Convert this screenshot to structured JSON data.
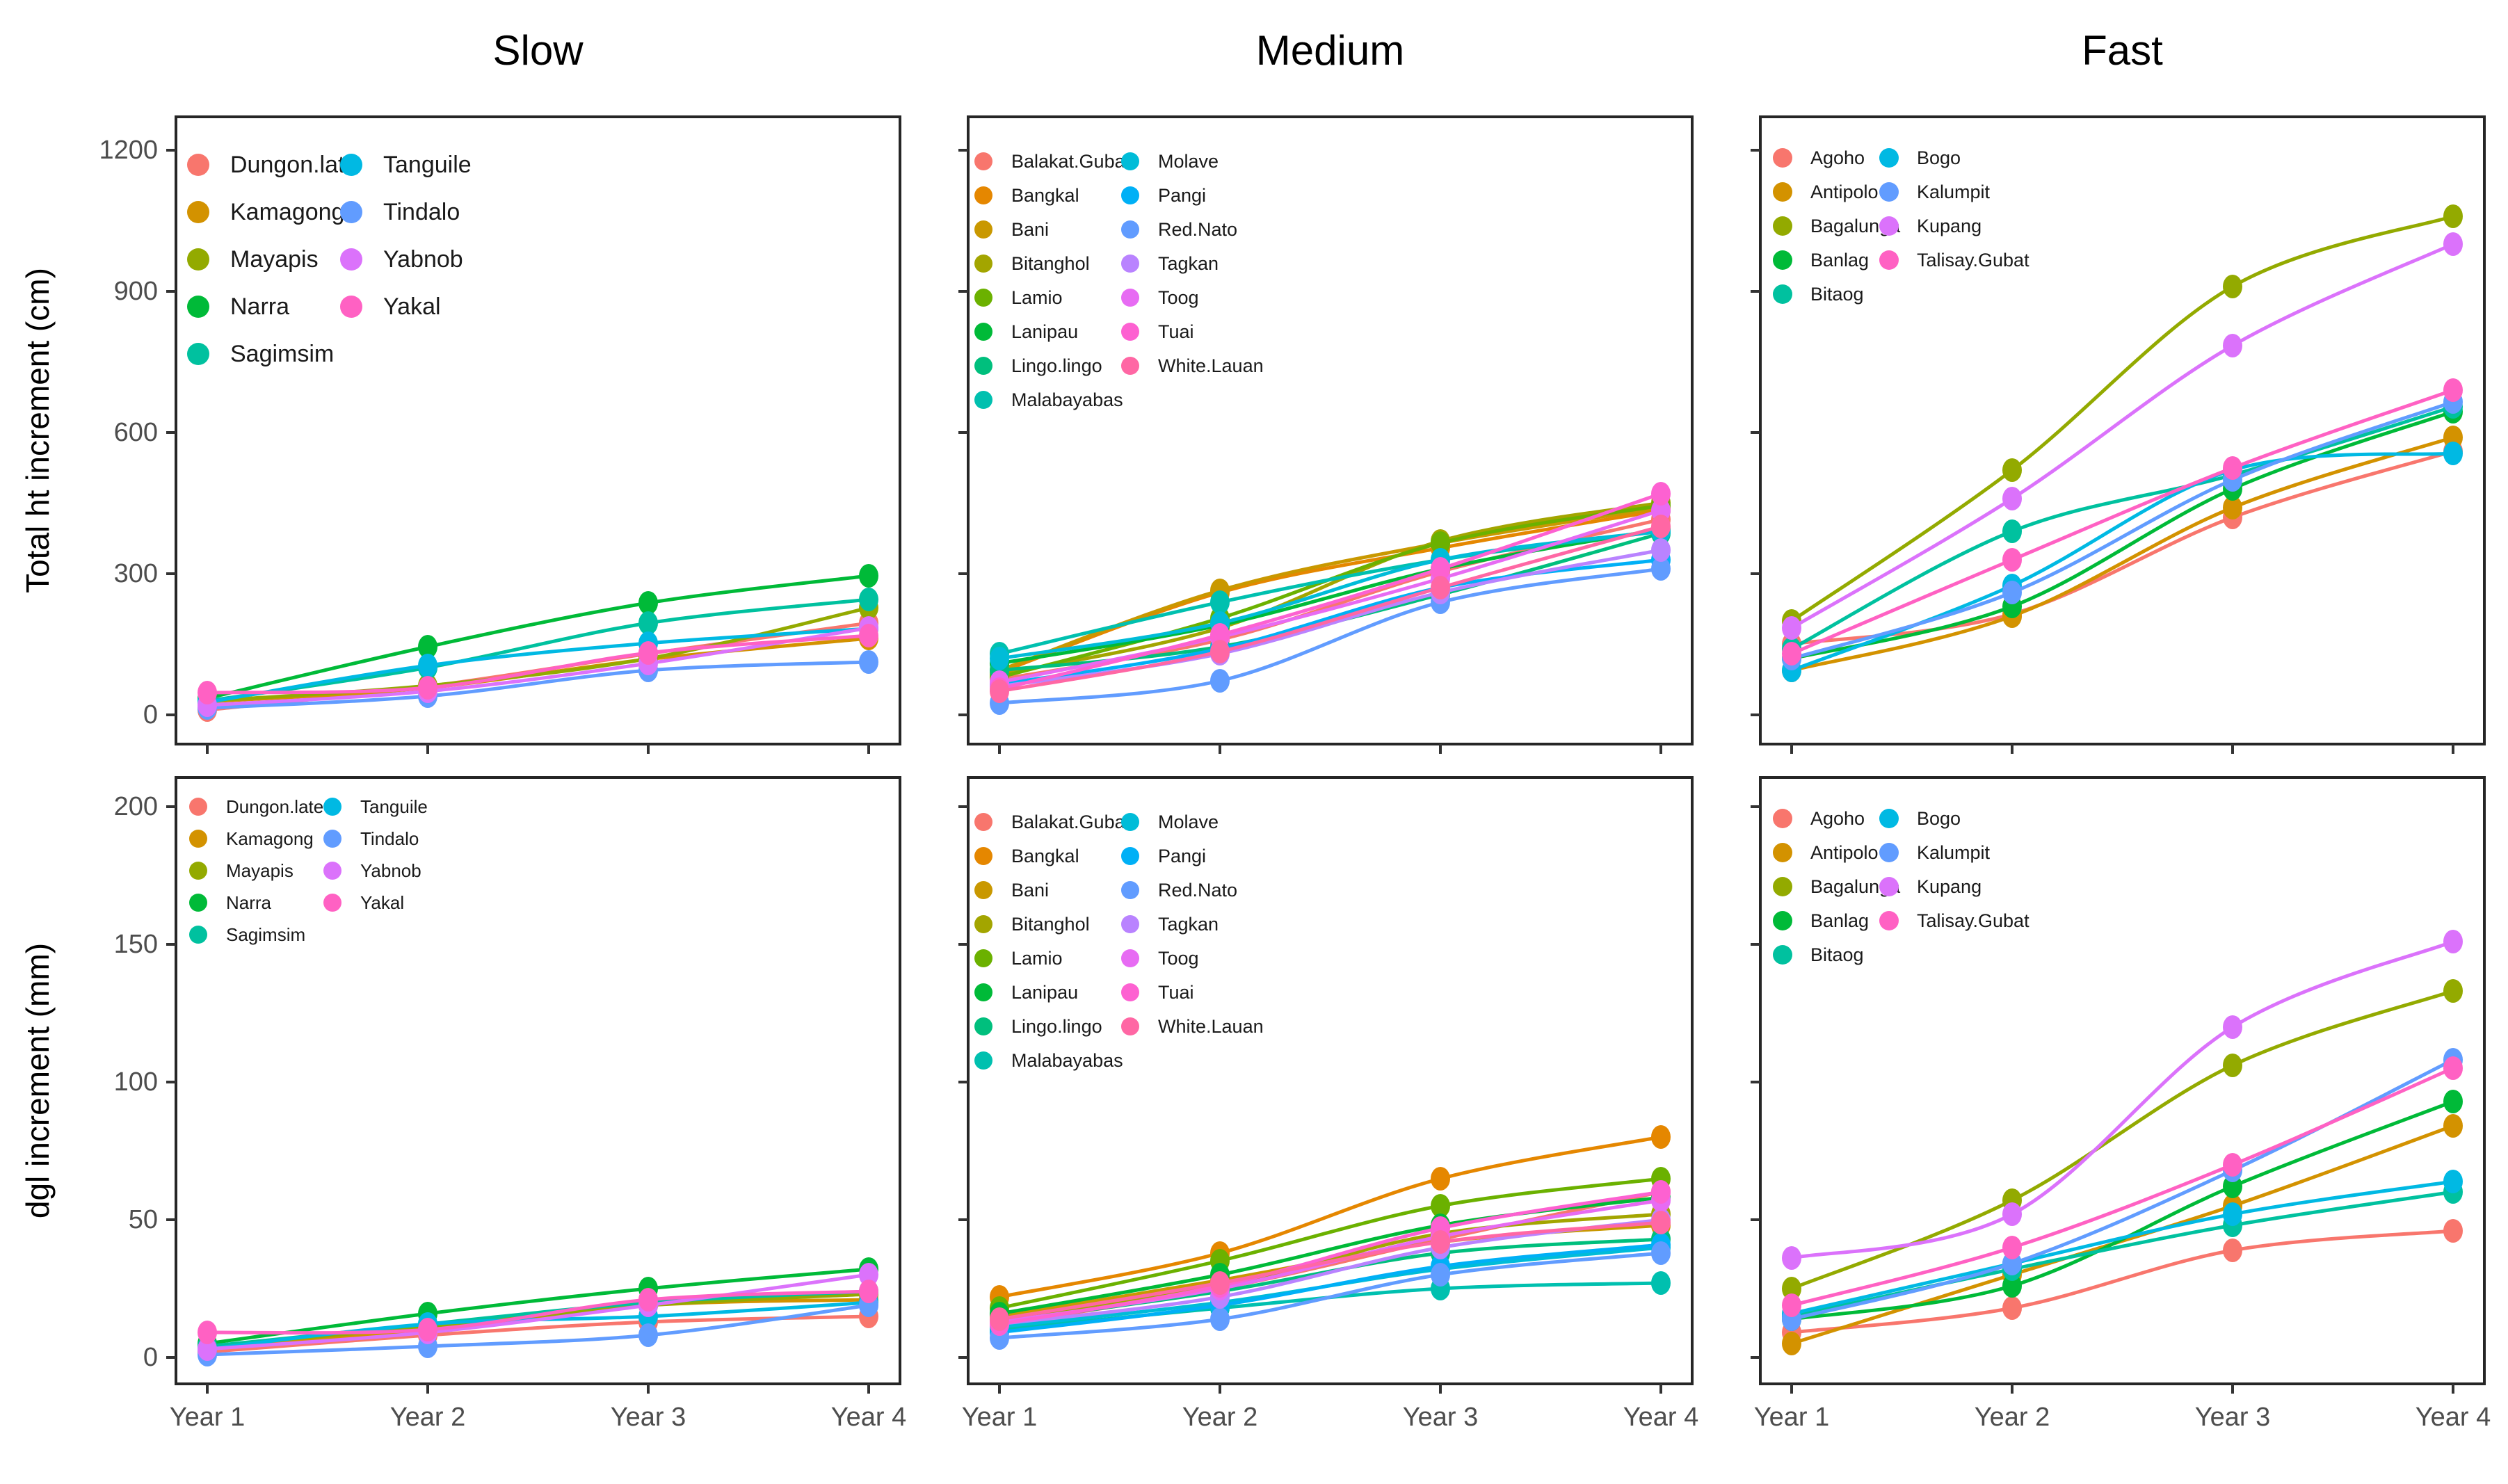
{
  "figure": {
    "columns": [
      "Slow",
      "Medium",
      "Fast"
    ],
    "x_categories": [
      "Year 1",
      "Year 2",
      "Year 3",
      "Year 4"
    ],
    "rows": [
      {
        "ylabel": "Total ht increment (cm)",
        "ylim": [
          0,
          1200
        ],
        "yticks": [
          0,
          300,
          600,
          900,
          1200
        ]
      },
      {
        "ylabel": "dgl increment (mm)",
        "ylim": [
          0,
          200
        ],
        "yticks": [
          0,
          50,
          100,
          150,
          200
        ]
      }
    ],
    "style": {
      "tick_label_color": "#4d4d4d",
      "legend_text_color": "#1a1a1a",
      "border_color": "#262626",
      "background": "#ffffff"
    }
  },
  "chart_data": [
    {
      "type": "line",
      "title": "Slow",
      "row": 0,
      "col": 0,
      "x": [
        "Year 1",
        "Year 2",
        "Year 3",
        "Year 4"
      ],
      "ylabel": "Total ht increment (cm)",
      "ylim": [
        0,
        1200
      ],
      "grid": false,
      "legend_position": "inside-top-left",
      "series": [
        {
          "name": "Dungon.late",
          "color": "#F8766D",
          "values": [
            10,
            60,
            130,
            195
          ]
        },
        {
          "name": "Kamagong",
          "color": "#D39200",
          "values": [
            28,
            58,
            118,
            163
          ]
        },
        {
          "name": "Mayapis",
          "color": "#93AA00",
          "values": [
            30,
            62,
            120,
            228
          ]
        },
        {
          "name": "Narra",
          "color": "#00BA38",
          "values": [
            35,
            145,
            238,
            295
          ]
        },
        {
          "name": "Sagimsim",
          "color": "#00C19F",
          "values": [
            30,
            100,
            195,
            245
          ]
        },
        {
          "name": "Tanguile",
          "color": "#00B9E3",
          "values": [
            27,
            105,
            152,
            183
          ]
        },
        {
          "name": "Tindalo",
          "color": "#619CFF",
          "values": [
            15,
            40,
            95,
            112
          ]
        },
        {
          "name": "Yabnob",
          "color": "#DB72FB",
          "values": [
            20,
            50,
            110,
            185
          ]
        },
        {
          "name": "Yakal",
          "color": "#FF61C3",
          "values": [
            47,
            57,
            132,
            168
          ]
        }
      ]
    },
    {
      "type": "line",
      "title": "Medium",
      "row": 0,
      "col": 1,
      "x": [
        "Year 1",
        "Year 2",
        "Year 3",
        "Year 4"
      ],
      "ylabel": "Total ht increment (cm)",
      "ylim": [
        0,
        1200
      ],
      "grid": false,
      "legend_position": "inside-top-left",
      "series": [
        {
          "name": "Balakat.Gubat",
          "color": "#F8766D",
          "values": [
            75,
            160,
            305,
            415
          ]
        },
        {
          "name": "Bangkal",
          "color": "#E58700",
          "values": [
            90,
            260,
            355,
            435
          ]
        },
        {
          "name": "Bani",
          "color": "#C99800",
          "values": [
            95,
            265,
            365,
            440
          ]
        },
        {
          "name": "Bitanghol",
          "color": "#A3A500",
          "values": [
            85,
            185,
            370,
            450
          ]
        },
        {
          "name": "Lamio",
          "color": "#6BB100",
          "values": [
            80,
            205,
            365,
            445
          ]
        },
        {
          "name": "Lanipau",
          "color": "#00BA38",
          "values": [
            110,
            190,
            310,
            395
          ]
        },
        {
          "name": "Lingo.lingo",
          "color": "#00BF7D",
          "values": [
            95,
            145,
            255,
            385
          ]
        },
        {
          "name": "Malabayabas",
          "color": "#00C0AF",
          "values": [
            130,
            240,
            330,
            390
          ]
        },
        {
          "name": "Molave",
          "color": "#00BCD8",
          "values": [
            120,
            195,
            330,
            390
          ]
        },
        {
          "name": "Pangi",
          "color": "#00B0F6",
          "values": [
            65,
            140,
            270,
            330
          ]
        },
        {
          "name": "Red.Nato",
          "color": "#619CFF",
          "values": [
            25,
            73,
            240,
            310
          ]
        },
        {
          "name": "Tagkan",
          "color": "#B983FF",
          "values": [
            60,
            130,
            260,
            350
          ]
        },
        {
          "name": "Toog",
          "color": "#E76BF3",
          "values": [
            70,
            165,
            290,
            435
          ]
        },
        {
          "name": "Tuai",
          "color": "#FD61D1",
          "values": [
            55,
            170,
            310,
            470
          ]
        },
        {
          "name": "White.Lauan",
          "color": "#FF67A4",
          "values": [
            50,
            135,
            270,
            400
          ]
        }
      ]
    },
    {
      "type": "line",
      "title": "Fast",
      "row": 0,
      "col": 2,
      "x": [
        "Year 1",
        "Year 2",
        "Year 3",
        "Year 4"
      ],
      "ylabel": "Total ht increment (cm)",
      "ylim": [
        0,
        1200
      ],
      "grid": false,
      "legend_position": "inside-top-left",
      "series": [
        {
          "name": "Agoho",
          "color": "#F8766D",
          "values": [
            150,
            215,
            420,
            560
          ]
        },
        {
          "name": "Antipolo",
          "color": "#D39200",
          "values": [
            95,
            210,
            440,
            590
          ]
        },
        {
          "name": "Bagalunga",
          "color": "#93AA00",
          "values": [
            200,
            520,
            910,
            1060
          ]
        },
        {
          "name": "Banlag",
          "color": "#00BA38",
          "values": [
            120,
            230,
            480,
            645
          ]
        },
        {
          "name": "Bitaog",
          "color": "#00C19F",
          "values": [
            140,
            390,
            510,
            655
          ]
        },
        {
          "name": "Bogo",
          "color": "#00B9E3",
          "values": [
            95,
            275,
            520,
            555
          ]
        },
        {
          "name": "Kalumpit",
          "color": "#619CFF",
          "values": [
            120,
            260,
            500,
            665
          ]
        },
        {
          "name": "Kupang",
          "color": "#DB72FB",
          "values": [
            185,
            460,
            785,
            1000
          ]
        },
        {
          "name": "Talisay.Gubat",
          "color": "#FF61C3",
          "values": [
            130,
            330,
            525,
            690
          ]
        }
      ]
    },
    {
      "type": "line",
      "title": "Slow",
      "row": 1,
      "col": 0,
      "x": [
        "Year 1",
        "Year 2",
        "Year 3",
        "Year 4"
      ],
      "ylabel": "dgl increment (mm)",
      "ylim": [
        0,
        200
      ],
      "grid": false,
      "legend_position": "inside-top-left",
      "series": [
        {
          "name": "Dungon.late",
          "color": "#F8766D",
          "values": [
            2,
            8,
            13,
            15
          ]
        },
        {
          "name": "Kamagong",
          "color": "#D39200",
          "values": [
            4,
            10,
            19,
            21
          ]
        },
        {
          "name": "Mayapis",
          "color": "#93AA00",
          "values": [
            4,
            11,
            19,
            23
          ]
        },
        {
          "name": "Narra",
          "color": "#00BA38",
          "values": [
            5,
            16,
            25,
            32
          ]
        },
        {
          "name": "Sagimsim",
          "color": "#00C19F",
          "values": [
            4,
            12,
            20,
            24
          ]
        },
        {
          "name": "Tanguile",
          "color": "#00B9E3",
          "values": [
            3,
            12,
            15,
            20
          ]
        },
        {
          "name": "Tindalo",
          "color": "#619CFF",
          "values": [
            1,
            4,
            8,
            19
          ]
        },
        {
          "name": "Yabnob",
          "color": "#DB72FB",
          "values": [
            3,
            9,
            19,
            30
          ]
        },
        {
          "name": "Yakal",
          "color": "#FF61C3",
          "values": [
            9,
            10,
            21,
            24
          ]
        }
      ]
    },
    {
      "type": "line",
      "title": "Medium",
      "row": 1,
      "col": 1,
      "x": [
        "Year 1",
        "Year 2",
        "Year 3",
        "Year 4"
      ],
      "ylabel": "dgl increment (mm)",
      "ylim": [
        0,
        200
      ],
      "grid": false,
      "legend_position": "inside-top-left",
      "series": [
        {
          "name": "Balakat.Gubat",
          "color": "#F8766D",
          "values": [
            12,
            25,
            43,
            60
          ]
        },
        {
          "name": "Bangkal",
          "color": "#E58700",
          "values": [
            22,
            38,
            65,
            80
          ]
        },
        {
          "name": "Bani",
          "color": "#C99800",
          "values": [
            15,
            28,
            42,
            48
          ]
        },
        {
          "name": "Bitanghol",
          "color": "#A3A500",
          "values": [
            14,
            26,
            45,
            52
          ]
        },
        {
          "name": "Lamio",
          "color": "#6BB100",
          "values": [
            18,
            35,
            55,
            65
          ]
        },
        {
          "name": "Lanipau",
          "color": "#00BA38",
          "values": [
            16,
            30,
            48,
            58
          ]
        },
        {
          "name": "Lingo.lingo",
          "color": "#00BF7D",
          "values": [
            13,
            24,
            38,
            43
          ]
        },
        {
          "name": "Malabayabas",
          "color": "#00C0AF",
          "values": [
            10,
            18,
            25,
            27
          ]
        },
        {
          "name": "Molave",
          "color": "#00BCD8",
          "values": [
            11,
            20,
            32,
            40
          ]
        },
        {
          "name": "Pangi",
          "color": "#00B0F6",
          "values": [
            9,
            19,
            33,
            41
          ]
        },
        {
          "name": "Red.Nato",
          "color": "#619CFF",
          "values": [
            7,
            14,
            30,
            38
          ]
        },
        {
          "name": "Tagkan",
          "color": "#B983FF",
          "values": [
            12,
            22,
            40,
            50
          ]
        },
        {
          "name": "Toog",
          "color": "#E76BF3",
          "values": [
            13,
            25,
            44,
            57
          ]
        },
        {
          "name": "Tuai",
          "color": "#FD61D1",
          "values": [
            12,
            26,
            47,
            60
          ]
        },
        {
          "name": "White.Lauan",
          "color": "#FF67A4",
          "values": [
            14,
            27,
            42,
            49
          ]
        }
      ]
    },
    {
      "type": "line",
      "title": "Fast",
      "row": 1,
      "col": 2,
      "x": [
        "Year 1",
        "Year 2",
        "Year 3",
        "Year 4"
      ],
      "ylabel": "dgl increment (mm)",
      "ylim": [
        0,
        200
      ],
      "grid": false,
      "legend_position": "inside-top-left",
      "series": [
        {
          "name": "Agoho",
          "color": "#F8766D",
          "values": [
            9,
            18,
            39,
            46
          ]
        },
        {
          "name": "Antipolo",
          "color": "#D39200",
          "values": [
            5,
            30,
            55,
            84
          ]
        },
        {
          "name": "Bagalunga",
          "color": "#93AA00",
          "values": [
            25,
            57,
            106,
            133
          ]
        },
        {
          "name": "Banlag",
          "color": "#00BA38",
          "values": [
            14,
            26,
            62,
            93
          ]
        },
        {
          "name": "Bitaog",
          "color": "#00C19F",
          "values": [
            15,
            32,
            48,
            60
          ]
        },
        {
          "name": "Bogo",
          "color": "#00B9E3",
          "values": [
            16,
            34,
            52,
            64
          ]
        },
        {
          "name": "Kalumpit",
          "color": "#619CFF",
          "values": [
            14,
            34,
            68,
            108
          ]
        },
        {
          "name": "Kupang",
          "color": "#DB72FB",
          "values": [
            36,
            52,
            120,
            151
          ]
        },
        {
          "name": "Talisay.Gubat",
          "color": "#FF61C3",
          "values": [
            19,
            40,
            70,
            105
          ]
        }
      ]
    }
  ]
}
